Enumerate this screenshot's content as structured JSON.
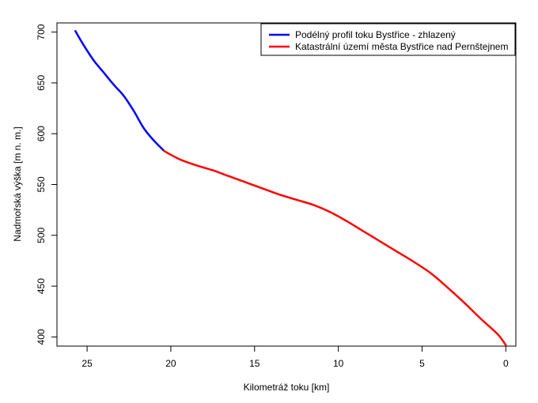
{
  "chart_data": {
    "type": "line",
    "xlabel": "Kilometráž toku [km]",
    "ylabel": "Nadmořská výška [m n. m.]",
    "xlim": [
      26.8,
      -0.6
    ],
    "ylim": [
      391,
      709
    ],
    "x_reversed": true,
    "x_ticks": [
      25,
      20,
      15,
      10,
      5,
      0
    ],
    "y_ticks": [
      400,
      450,
      500,
      550,
      600,
      650,
      700
    ],
    "grid": false,
    "legend_position": "top-right",
    "series": [
      {
        "name": "Podélný profil toku Bystřice - zhlazený",
        "color": "#0000ff",
        "x": [
          25.7,
          25.2,
          24.6,
          24.0,
          23.4,
          22.8,
          22.2,
          21.6,
          21.0,
          20.4
        ],
        "y": [
          701,
          687,
          672,
          660,
          648,
          637,
          622,
          605,
          593,
          583
        ]
      },
      {
        "name": "Katastrální území města Bystřice nad Pernštejnem",
        "color": "#ff0000",
        "x": [
          20.4,
          19.5,
          18.5,
          17.5,
          16.5,
          15.5,
          14.5,
          13.5,
          12.5,
          11.5,
          10.5,
          9.5,
          8.5,
          7.5,
          6.5,
          5.5,
          4.5,
          3.5,
          2.5,
          1.5,
          0.5,
          0.0
        ],
        "y": [
          583,
          575,
          569,
          564,
          558,
          552,
          546,
          540,
          535,
          530,
          523,
          514,
          504,
          494,
          484,
          474,
          463,
          449,
          434,
          418,
          403,
          392
        ]
      }
    ]
  }
}
